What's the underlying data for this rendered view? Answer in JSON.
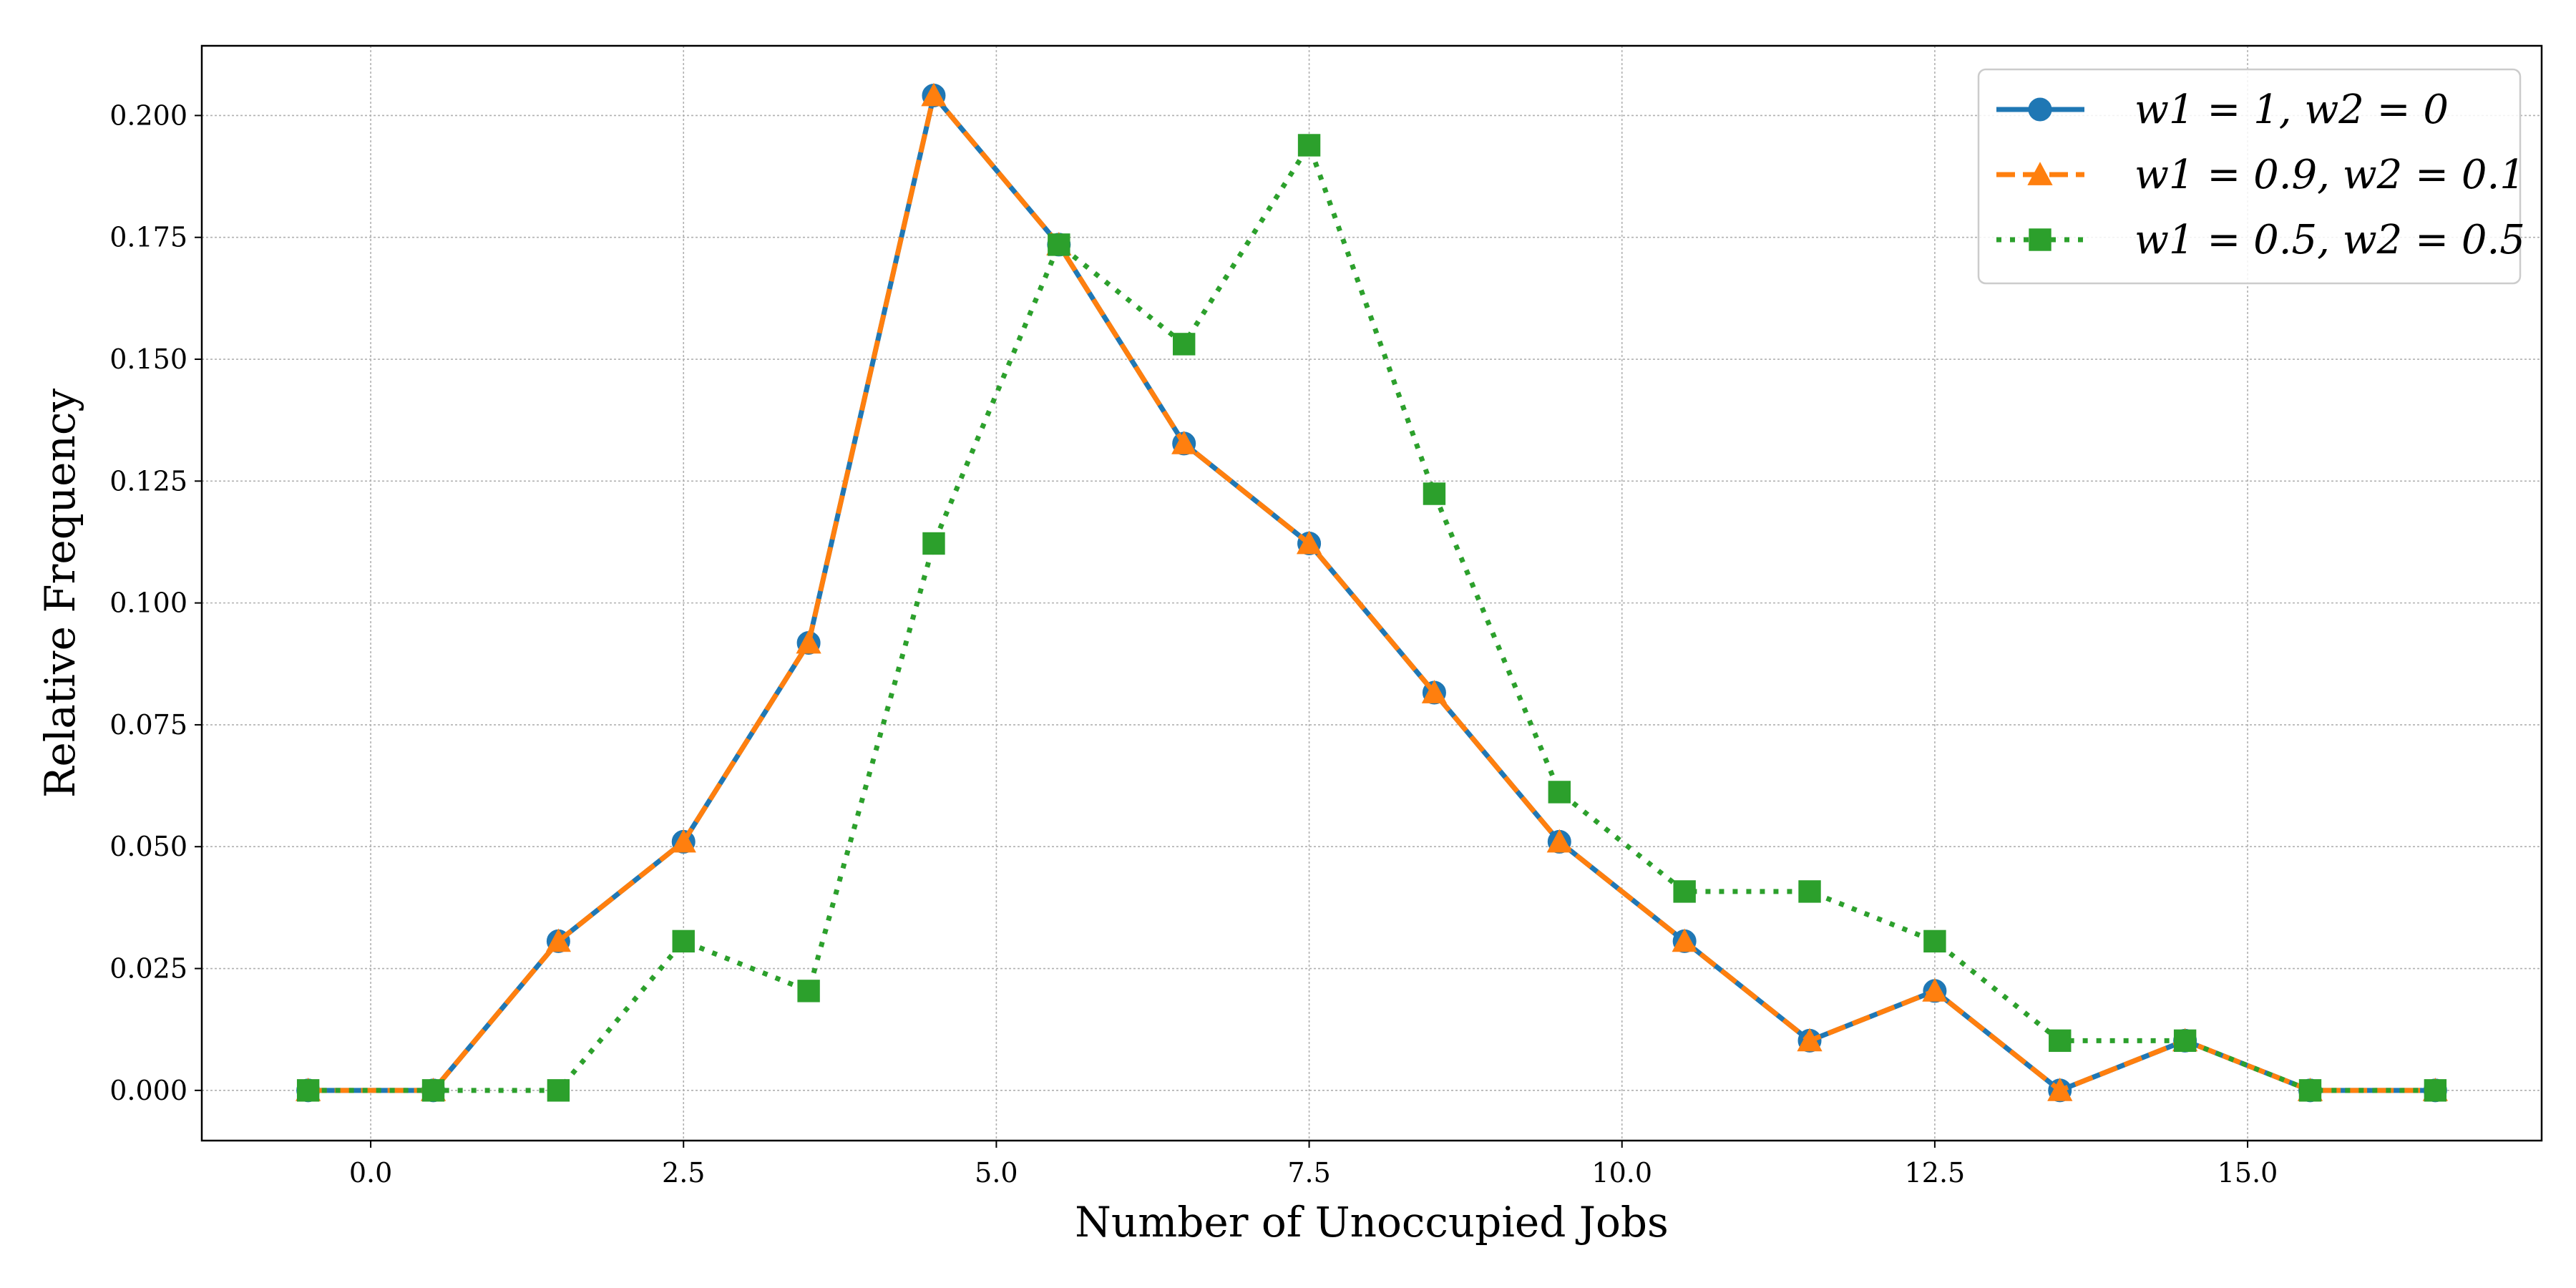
{
  "chart_data": {
    "type": "line",
    "title": "",
    "xlabel": "Number of Unoccupied Jobs",
    "ylabel": "Relative Frequency",
    "xlim": [
      -1.35,
      17.35
    ],
    "ylim": [
      -0.0103,
      0.2143
    ],
    "grid": true,
    "legend_position": "top-right",
    "x_ticks": [
      "0.0",
      "2.5",
      "5.0",
      "7.5",
      "10.0",
      "12.5",
      "15.0"
    ],
    "x_tick_values": [
      0,
      2.5,
      5,
      7.5,
      10,
      12.5,
      15
    ],
    "y_ticks": [
      "0.000",
      "0.025",
      "0.050",
      "0.075",
      "0.100",
      "0.125",
      "0.150",
      "0.175",
      "0.200"
    ],
    "y_tick_values": [
      0,
      0.025,
      0.05,
      0.075,
      0.1,
      0.125,
      0.15,
      0.175,
      0.2
    ],
    "x": [
      -0.5,
      0.5,
      1.5,
      2.5,
      3.5,
      4.5,
      5.5,
      6.5,
      7.5,
      8.5,
      9.5,
      10.5,
      11.5,
      12.5,
      13.5,
      14.5,
      15.5,
      16.5
    ],
    "series": [
      {
        "name": "w1 = 1, w2 = 0",
        "color": "#1f77b4",
        "linestyle": "solid",
        "marker": "circle",
        "values": [
          0,
          0,
          0.0306,
          0.051,
          0.0918,
          0.2041,
          0.1735,
          0.1327,
          0.1122,
          0.0816,
          0.051,
          0.0306,
          0.0102,
          0.0204,
          0,
          0.0102,
          0,
          0
        ]
      },
      {
        "name": "w1 = 0.9, w2 = 0.1",
        "color": "#ff7f0e",
        "linestyle": "dashed",
        "marker": "triangle",
        "values": [
          0,
          0,
          0.0306,
          0.051,
          0.0918,
          0.2041,
          0.1735,
          0.1327,
          0.1122,
          0.0816,
          0.051,
          0.0306,
          0.0102,
          0.0204,
          0,
          0.0102,
          0,
          0
        ]
      },
      {
        "name": "w1 = 0.5, w2 = 0.5",
        "color": "#2ca02c",
        "linestyle": "dotted",
        "marker": "square",
        "values": [
          0,
          0,
          0,
          0.0306,
          0.0204,
          0.1122,
          0.1735,
          0.1531,
          0.1939,
          0.1224,
          0.0612,
          0.0408,
          0.0408,
          0.0306,
          0.0102,
          0.0102,
          0,
          0
        ]
      }
    ]
  }
}
